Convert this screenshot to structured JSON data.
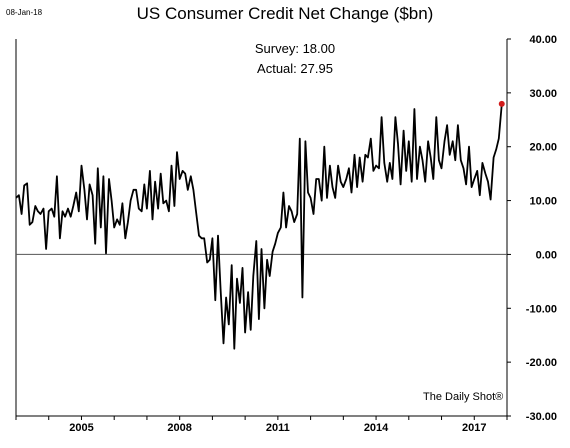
{
  "date_stamp": "08-Jan-18",
  "stats": {
    "survey_label": "Survey:",
    "survey_value": "18.00",
    "actual_label": "Actual:",
    "actual_value": "27.95"
  },
  "source": "The Daily Shot®",
  "colors": {
    "line": "#000000",
    "highlight": "#d11a1a",
    "zero_line": "#555555"
  },
  "chart_data": {
    "type": "line",
    "title": "US Consumer Credit Net Change ($bn)",
    "xlabel": "",
    "ylabel": "",
    "y_axis_side": "right",
    "ylim": [
      -30,
      40
    ],
    "yticks": [
      40,
      30,
      20,
      10,
      0,
      -10,
      -20,
      -30
    ],
    "ytick_labels": [
      "40.00",
      "30.00",
      "20.00",
      "10.00",
      "0.00",
      "-10.00",
      "-20.00",
      "-30.00"
    ],
    "xlim": [
      2003.0,
      2018.0
    ],
    "xticks": [
      2005,
      2008,
      2011,
      2014,
      2017
    ],
    "xtick_labels": [
      "2005",
      "2008",
      "2011",
      "2014",
      "2017"
    ],
    "grid": false,
    "legend": "none",
    "highlight_last_point": true,
    "series": [
      {
        "name": "",
        "x": [
          2003.0,
          2003.09,
          2003.17,
          2003.25,
          2003.34,
          2003.42,
          2003.5,
          2003.59,
          2003.67,
          2003.75,
          2003.84,
          2003.92,
          2004.0,
          2004.09,
          2004.17,
          2004.25,
          2004.34,
          2004.42,
          2004.5,
          2004.59,
          2004.67,
          2004.75,
          2004.84,
          2004.92,
          2005.0,
          2005.09,
          2005.17,
          2005.25,
          2005.34,
          2005.42,
          2005.5,
          2005.59,
          2005.67,
          2005.75,
          2005.84,
          2005.92,
          2006.0,
          2006.09,
          2006.17,
          2006.25,
          2006.34,
          2006.42,
          2006.5,
          2006.59,
          2006.67,
          2006.75,
          2006.84,
          2006.92,
          2007.0,
          2007.09,
          2007.17,
          2007.25,
          2007.34,
          2007.42,
          2007.5,
          2007.59,
          2007.67,
          2007.75,
          2007.84,
          2007.92,
          2008.0,
          2008.09,
          2008.17,
          2008.25,
          2008.34,
          2008.42,
          2008.5,
          2008.59,
          2008.67,
          2008.75,
          2008.84,
          2008.92,
          2009.0,
          2009.09,
          2009.17,
          2009.25,
          2009.34,
          2009.42,
          2009.5,
          2009.59,
          2009.67,
          2009.75,
          2009.84,
          2009.92,
          2010.0,
          2010.09,
          2010.17,
          2010.25,
          2010.34,
          2010.42,
          2010.5,
          2010.59,
          2010.67,
          2010.75,
          2010.84,
          2010.92,
          2011.0,
          2011.09,
          2011.17,
          2011.25,
          2011.34,
          2011.42,
          2011.5,
          2011.59,
          2011.67,
          2011.75,
          2011.84,
          2011.92,
          2012.0,
          2012.09,
          2012.17,
          2012.25,
          2012.34,
          2012.42,
          2012.5,
          2012.59,
          2012.67,
          2012.75,
          2012.84,
          2012.92,
          2013.0,
          2013.09,
          2013.17,
          2013.25,
          2013.34,
          2013.42,
          2013.5,
          2013.59,
          2013.67,
          2013.75,
          2013.84,
          2013.92,
          2014.0,
          2014.09,
          2014.17,
          2014.25,
          2014.34,
          2014.42,
          2014.5,
          2014.59,
          2014.67,
          2014.75,
          2014.84,
          2014.92,
          2015.0,
          2015.09,
          2015.17,
          2015.25,
          2015.34,
          2015.42,
          2015.5,
          2015.59,
          2015.67,
          2015.75,
          2015.84,
          2015.92,
          2016.0,
          2016.09,
          2016.17,
          2016.25,
          2016.34,
          2016.42,
          2016.5,
          2016.59,
          2016.67,
          2016.75,
          2016.84,
          2016.92,
          2017.0,
          2017.09,
          2017.17,
          2017.25,
          2017.34,
          2017.42,
          2017.5,
          2017.59,
          2017.67,
          2017.75,
          2017.84
        ],
        "values": [
          10.5,
          11.0,
          7.5,
          12.8,
          13.2,
          5.5,
          6.0,
          9.0,
          8.0,
          7.5,
          8.5,
          1.0,
          8.0,
          8.5,
          7.0,
          14.5,
          3.0,
          8.0,
          7.0,
          8.5,
          7.0,
          9.0,
          11.5,
          8.0,
          16.5,
          12.0,
          6.5,
          13.0,
          11.0,
          2.0,
          16.0,
          5.0,
          14.5,
          0.2,
          14.0,
          10.0,
          5.0,
          6.5,
          5.5,
          9.5,
          3.0,
          6.0,
          10.0,
          12.0,
          12.0,
          8.5,
          8.0,
          13.0,
          8.5,
          15.5,
          6.5,
          13.5,
          8.5,
          15.0,
          9.5,
          10.0,
          8.0,
          16.5,
          9.0,
          19.0,
          14.0,
          15.5,
          15.0,
          12.0,
          14.5,
          12.0,
          8.0,
          3.5,
          3.0,
          3.0,
          -1.5,
          -1.0,
          3.0,
          -8.5,
          3.5,
          -6.5,
          -16.5,
          -8.0,
          -13.0,
          -2.0,
          -17.5,
          -4.5,
          -9.0,
          -2.5,
          -14.5,
          -7.0,
          -14.0,
          -4.0,
          2.5,
          -12.0,
          1.0,
          -10.0,
          -1.0,
          -4.0,
          0.5,
          2.0,
          4.0,
          5.0,
          11.5,
          5.0,
          9.0,
          8.0,
          6.0,
          7.5,
          21.5,
          -8.0,
          21.0,
          11.5,
          10.5,
          7.5,
          14.0,
          14.0,
          10.0,
          20.0,
          10.5,
          16.5,
          12.5,
          10.5,
          16.5,
          13.5,
          12.5,
          14.0,
          16.0,
          11.5,
          18.5,
          12.5,
          18.0,
          13.5,
          18.5,
          18.0,
          21.5,
          15.5,
          16.5,
          16.0,
          25.5,
          17.0,
          13.5,
          17.0,
          14.0,
          25.5,
          20.5,
          13.0,
          23.0,
          15.5,
          21.0,
          13.5,
          27.0,
          14.0,
          20.0,
          17.5,
          13.5,
          21.0,
          18.0,
          14.0,
          25.5,
          17.5,
          16.0,
          21.0,
          24.0,
          18.5,
          21.0,
          17.5,
          24.0,
          17.5,
          16.0,
          13.0,
          20.0,
          12.5,
          14.0,
          15.5,
          11.0,
          17.0,
          15.0,
          13.5,
          10.2,
          18.0,
          19.5,
          21.5,
          27.95
        ]
      }
    ]
  }
}
